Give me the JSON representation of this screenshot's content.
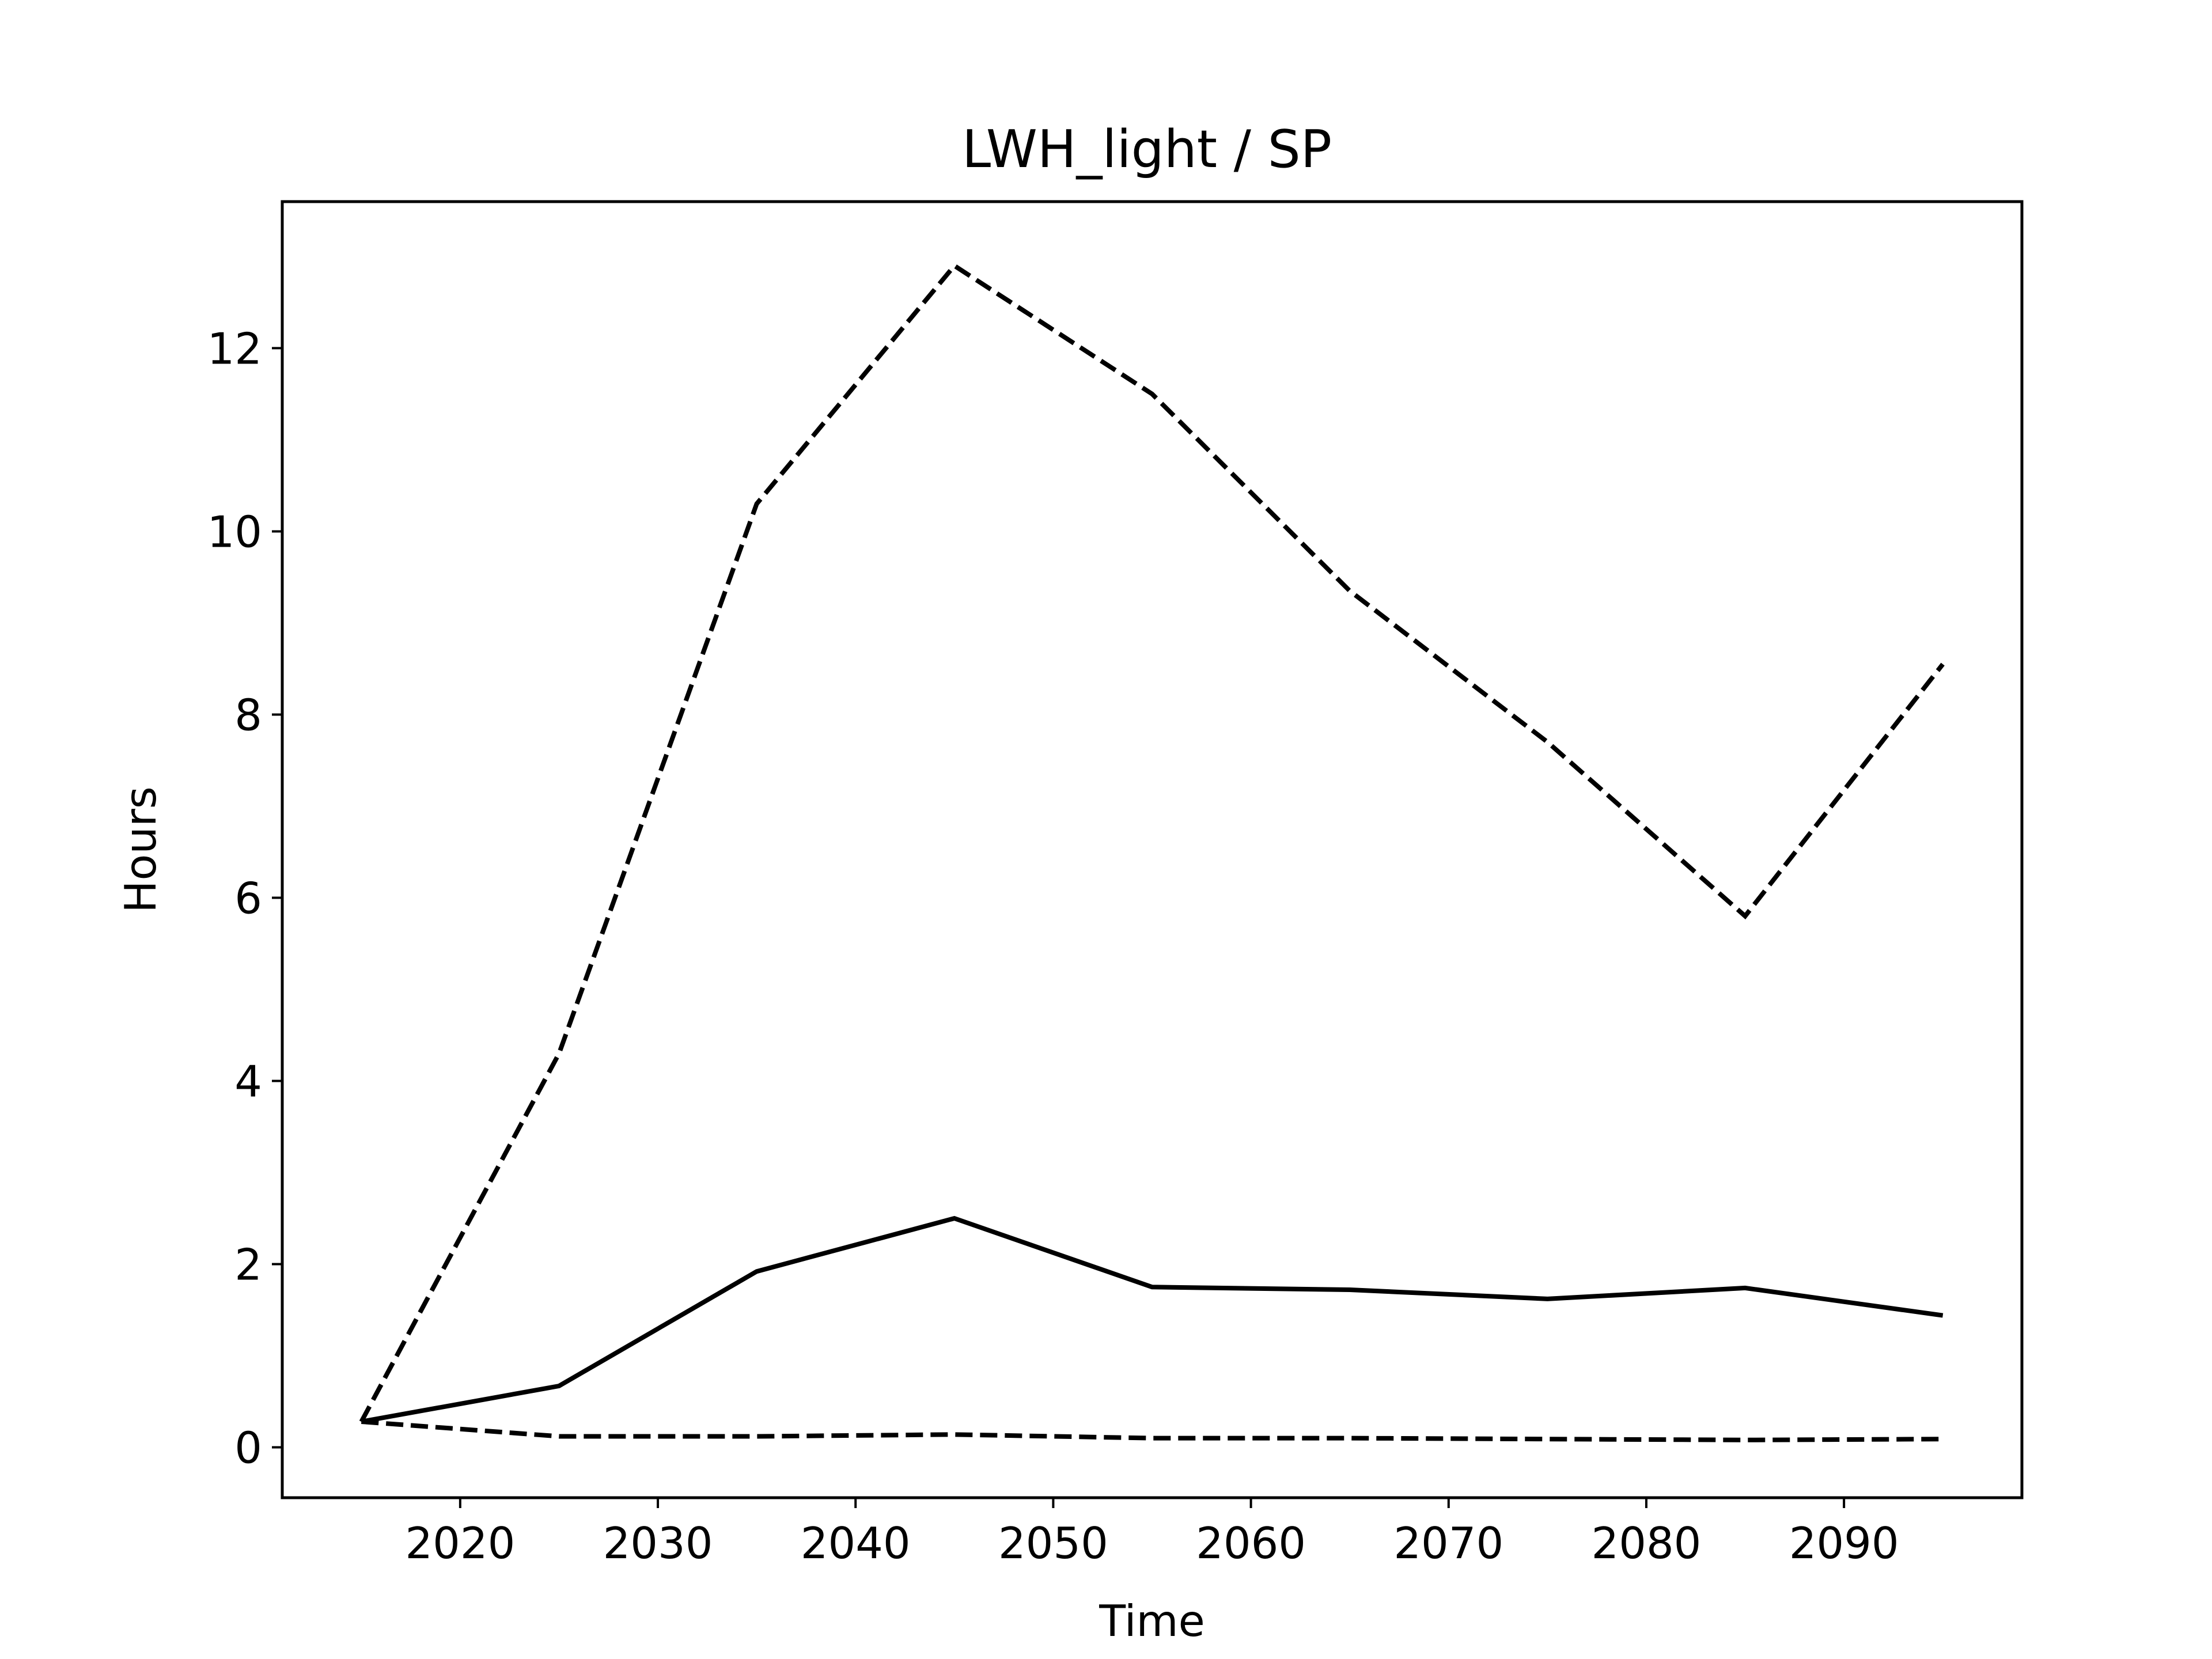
{
  "chart_data": {
    "type": "line",
    "title": "LWH_light / SP",
    "xlabel": "Time",
    "ylabel": "Hours",
    "x": [
      2015,
      2025,
      2035,
      2045,
      2055,
      2065,
      2075,
      2085,
      2095
    ],
    "xlim": [
      2011,
      2099
    ],
    "ylim": [
      -0.55,
      13.6
    ],
    "xticks": [
      2020,
      2030,
      2040,
      2050,
      2060,
      2070,
      2080,
      2090
    ],
    "yticks": [
      0,
      2,
      4,
      6,
      8,
      10,
      12
    ],
    "grid": false,
    "legend": "none",
    "series": [
      {
        "style": "dashed",
        "color": "#000000",
        "values": [
          0.28,
          4.3,
          10.3,
          12.9,
          11.5,
          9.35,
          7.7,
          5.8,
          8.55
        ]
      },
      {
        "style": "solid",
        "color": "#000000",
        "values": [
          0.28,
          0.67,
          1.92,
          2.5,
          1.75,
          1.72,
          1.62,
          1.74,
          1.44
        ]
      },
      {
        "style": "dashed",
        "color": "#000000",
        "values": [
          0.28,
          0.12,
          0.12,
          0.14,
          0.1,
          0.1,
          0.09,
          0.08,
          0.09
        ]
      }
    ]
  }
}
